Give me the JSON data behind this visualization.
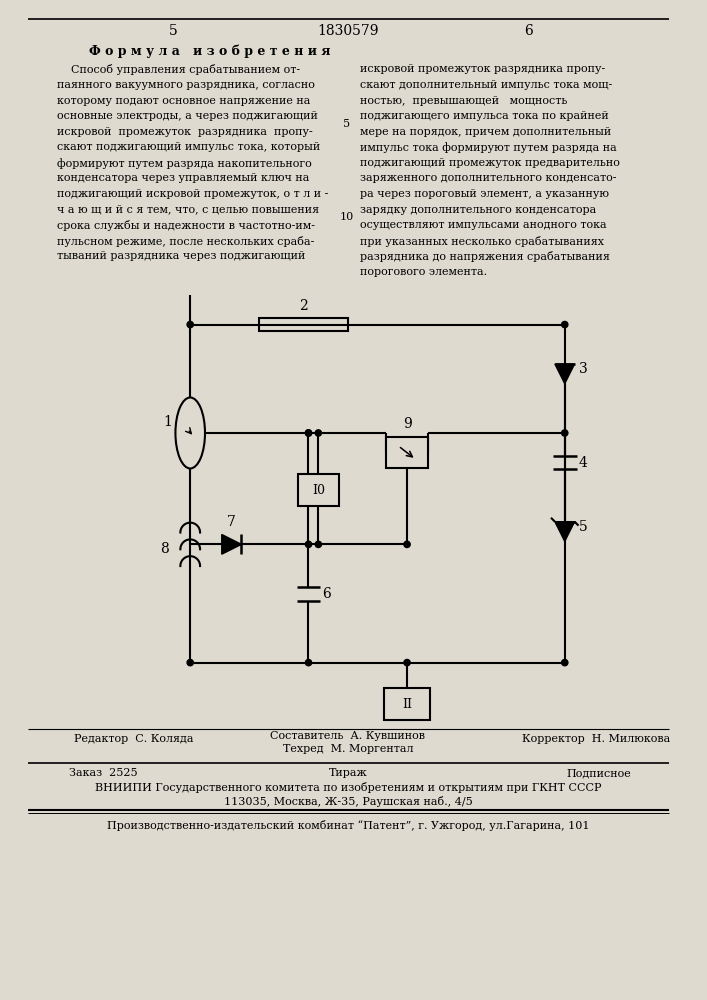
{
  "bg_color": "#e0ddd4",
  "title_text": "Ф о р м у л а   и з о б р е т е н и я",
  "left_col_lines": [
    "    Способ управления срабатыванием от-",
    "паянного вакуумного разрядника, согласно",
    "которому подают основное напряжение на",
    "основные электроды, а через поджигающий",
    "искровой  промежуток  разрядника  пропу-",
    "скают поджигающий импульс тока, который",
    "формируют путем разряда накопительного",
    "конденсатора через управляемый ключ на",
    "поджигающий искровой промежуток, о т л и -",
    "ч а ю щ и й с я тем, что, с целью повышения",
    "срока службы и надежности в частотно-им-",
    "пульсном режиме, после нескольких сраба-",
    "тываний разрядника через поджигающий"
  ],
  "right_col_lines": [
    "искровой промежуток разрядника пропу-",
    "скают дополнительный импульс тока мощ-",
    "ностью,  превышающей   мощность",
    "поджигающего импульса тока по крайней",
    "мере на порядок, причем дополнительный",
    "импульс тока формируют путем разряда на",
    "поджигающий промежуток предварительно",
    "заряженного дополнительного конденсато-",
    "ра через пороговый элемент, а указанную",
    "зарядку дополнительного конденсатора",
    "осуществляют импульсами анодного тока",
    "при указанных несколько срабатываниях",
    "разрядника до напряжения срабатывания",
    "порогового элемента."
  ],
  "footer_editor": "Редактор  С. Коляда",
  "footer_composer": "Составитель  А. Кувшинов",
  "footer_tech": "Техред  М. Моргентал",
  "footer_corrector": "Корректор  Н. Милюкова",
  "footer_order": "Заказ  2525",
  "footer_tirazh": "Тираж",
  "footer_podpisnoe": "Подписное",
  "footer_vniipи": "ВНИИПИ Государственного комитета по изобретениям и открытиям при ГКНТ СССР",
  "footer_address": "113035, Москва, Ж-35, Раушская наб., 4/5",
  "footer_print": "Производственно-издательский комбинат “Патент”, г. Ужгород, ул.Гагарина, 101"
}
